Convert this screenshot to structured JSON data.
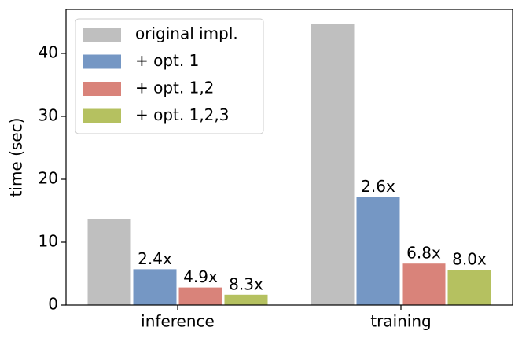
{
  "chart_data": {
    "type": "bar",
    "categories": [
      "inference",
      "training"
    ],
    "y_label": "time (sec)",
    "series": [
      {
        "name": "original impl.",
        "color": "#bfbfbf",
        "values": [
          13.7,
          44.7
        ]
      },
      {
        "name": "+ opt. 1",
        "color": "#7597c4",
        "values": [
          5.7,
          17.2
        ],
        "annotations": [
          "2.4x",
          "2.6x"
        ]
      },
      {
        "name": "+ opt. 1,2",
        "color": "#d9837a",
        "values": [
          2.8,
          6.6
        ],
        "annotations": [
          "4.9x",
          "6.8x"
        ]
      },
      {
        "name": "+ opt. 1,2,3",
        "color": "#b5c160",
        "values": [
          1.65,
          5.6
        ],
        "annotations": [
          "8.3x",
          "8.0x"
        ]
      }
    ],
    "ylim": [
      0,
      47
    ],
    "yticks": [
      0,
      10,
      20,
      30,
      40
    ],
    "legend": "upper-left"
  }
}
